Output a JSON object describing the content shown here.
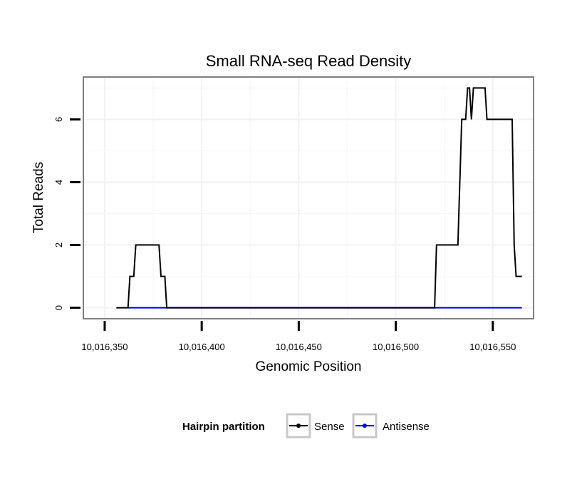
{
  "chart_data": {
    "type": "line",
    "title": "Small RNA-seq Read Density",
    "xlabel": "Genomic Position",
    "ylabel": "Total Reads",
    "xlim": [
      10016339,
      10016571
    ],
    "ylim": [
      -0.35,
      7.35
    ],
    "xticks": [
      10016350,
      10016400,
      10016450,
      10016500,
      10016550
    ],
    "xtick_labels": [
      "10,016,350",
      "10,016,400",
      "10,016,450",
      "10,016,500",
      "10,016,550"
    ],
    "yticks": [
      0,
      2,
      4,
      6
    ],
    "ytick_labels": [
      "0",
      "2",
      "4",
      "6"
    ],
    "grid": true,
    "legend_position": "bottom",
    "legend_title": "Hairpin partition",
    "series": [
      {
        "name": "Sense",
        "color": "#000000",
        "points": [
          [
            10016356,
            0
          ],
          [
            10016362,
            0
          ],
          [
            10016363,
            1
          ],
          [
            10016365,
            1
          ],
          [
            10016366,
            2
          ],
          [
            10016378,
            2
          ],
          [
            10016379,
            1
          ],
          [
            10016381,
            1
          ],
          [
            10016382,
            0
          ],
          [
            10016520,
            0
          ],
          [
            10016521,
            2
          ],
          [
            10016532,
            2
          ],
          [
            10016534,
            6
          ],
          [
            10016536,
            6
          ],
          [
            10016537,
            7
          ],
          [
            10016538,
            7
          ],
          [
            10016539,
            6
          ],
          [
            10016540,
            7
          ],
          [
            10016546,
            7
          ],
          [
            10016547,
            6
          ],
          [
            10016560,
            6
          ],
          [
            10016561,
            2
          ],
          [
            10016562,
            1
          ],
          [
            10016565,
            1
          ]
        ]
      },
      {
        "name": "Antisense",
        "color": "#0000ff",
        "points": [
          [
            10016362,
            0
          ],
          [
            10016565,
            0
          ]
        ]
      }
    ]
  }
}
